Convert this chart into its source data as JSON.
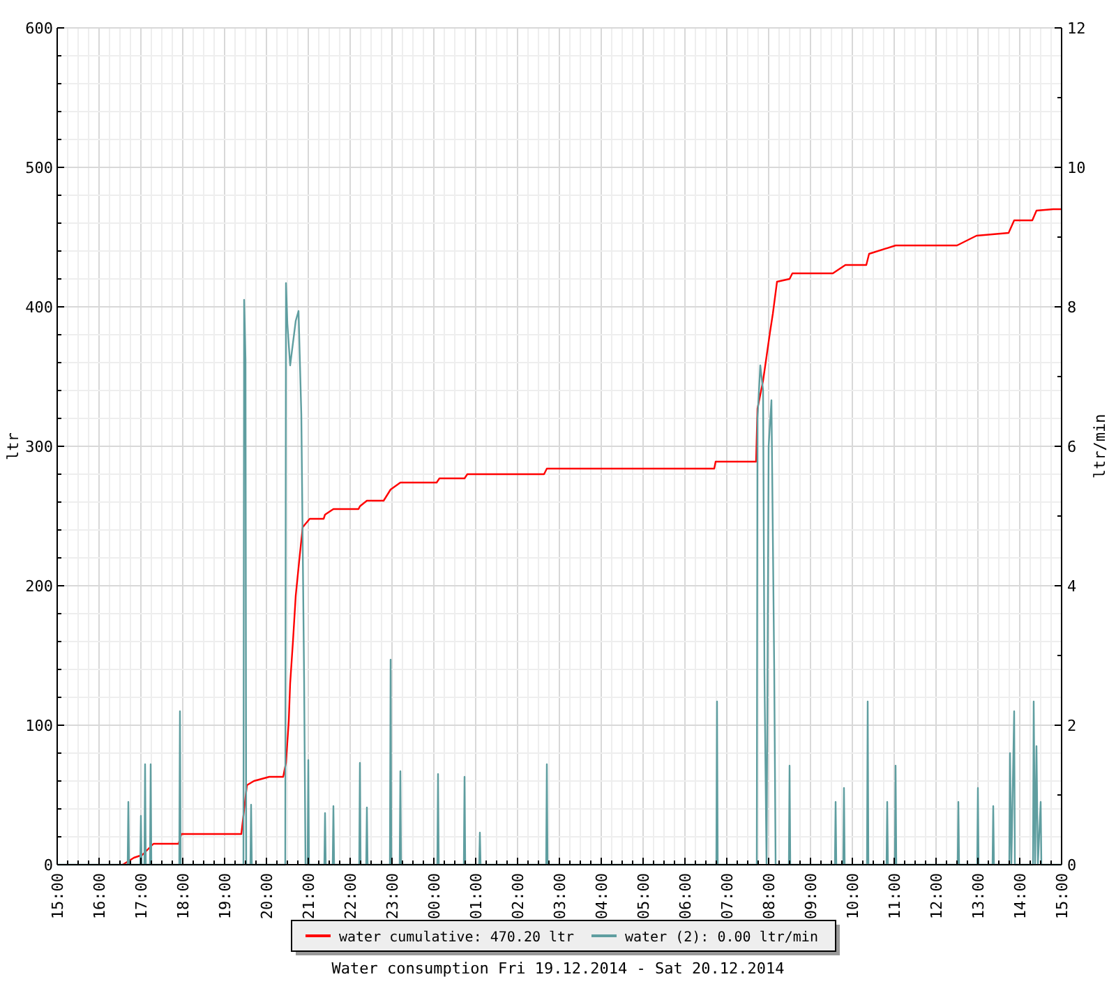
{
  "chart_data": {
    "type": "line",
    "title": "Water consumption Fri 19.12.2014 - Sat 20.12.2014",
    "ylabel": "ltr",
    "y2label": "ltr/min",
    "legend": "bottom",
    "grid": true,
    "marker": "none",
    "line_style": "solid",
    "xlim": [
      "2014-12-19T15:00",
      "2014-12-20T15:00"
    ],
    "xticks": [
      {
        "value": "2014-12-19T15:00",
        "label": "15:00"
      },
      {
        "value": "2014-12-19T15:15",
        "label": null
      },
      {
        "value": "2014-12-19T15:30",
        "label": null
      },
      {
        "value": "2014-12-19T15:45",
        "label": null
      },
      {
        "value": "2014-12-19T16:00",
        "label": "16:00"
      },
      {
        "value": "2014-12-19T16:15",
        "label": null
      },
      {
        "value": "2014-12-19T16:30",
        "label": null
      },
      {
        "value": "2014-12-19T16:45",
        "label": null
      },
      {
        "value": "2014-12-19T17:00",
        "label": "17:00"
      },
      {
        "value": "2014-12-19T17:15",
        "label": null
      },
      {
        "value": "2014-12-19T17:30",
        "label": null
      },
      {
        "value": "2014-12-19T17:45",
        "label": null
      },
      {
        "value": "2014-12-19T18:00",
        "label": "18:00"
      },
      {
        "value": "2014-12-19T18:15",
        "label": null
      },
      {
        "value": "2014-12-19T18:30",
        "label": null
      },
      {
        "value": "2014-12-19T18:45",
        "label": null
      },
      {
        "value": "2014-12-19T19:00",
        "label": "19:00"
      },
      {
        "value": "2014-12-19T19:15",
        "label": null
      },
      {
        "value": "2014-12-19T19:30",
        "label": null
      },
      {
        "value": "2014-12-19T19:45",
        "label": null
      },
      {
        "value": "2014-12-19T20:00",
        "label": "20:00"
      },
      {
        "value": "2014-12-19T20:15",
        "label": null
      },
      {
        "value": "2014-12-19T20:30",
        "label": null
      },
      {
        "value": "2014-12-19T20:45",
        "label": null
      },
      {
        "value": "2014-12-19T21:00",
        "label": "21:00"
      },
      {
        "value": "2014-12-19T21:15",
        "label": null
      },
      {
        "value": "2014-12-19T21:30",
        "label": null
      },
      {
        "value": "2014-12-19T21:45",
        "label": null
      },
      {
        "value": "2014-12-19T22:00",
        "label": "22:00"
      },
      {
        "value": "2014-12-19T22:15",
        "label": null
      },
      {
        "value": "2014-12-19T22:30",
        "label": null
      },
      {
        "value": "2014-12-19T22:45",
        "label": null
      },
      {
        "value": "2014-12-19T23:00",
        "label": "23:00"
      },
      {
        "value": "2014-12-19T23:15",
        "label": null
      },
      {
        "value": "2014-12-19T23:30",
        "label": null
      },
      {
        "value": "2014-12-19T23:45",
        "label": null
      },
      {
        "value": "2014-12-20T00:00",
        "label": "00:00"
      },
      {
        "value": "2014-12-20T00:15",
        "label": null
      },
      {
        "value": "2014-12-20T00:30",
        "label": null
      },
      {
        "value": "2014-12-20T00:45",
        "label": null
      },
      {
        "value": "2014-12-20T01:00",
        "label": "01:00"
      },
      {
        "value": "2014-12-20T01:15",
        "label": null
      },
      {
        "value": "2014-12-20T01:30",
        "label": null
      },
      {
        "value": "2014-12-20T01:45",
        "label": null
      },
      {
        "value": "2014-12-20T02:00",
        "label": "02:00"
      },
      {
        "value": "2014-12-20T02:15",
        "label": null
      },
      {
        "value": "2014-12-20T02:30",
        "label": null
      },
      {
        "value": "2014-12-20T02:45",
        "label": null
      },
      {
        "value": "2014-12-20T03:00",
        "label": "03:00"
      },
      {
        "value": "2014-12-20T03:15",
        "label": null
      },
      {
        "value": "2014-12-20T03:30",
        "label": null
      },
      {
        "value": "2014-12-20T03:45",
        "label": null
      },
      {
        "value": "2014-12-20T04:00",
        "label": "04:00"
      },
      {
        "value": "2014-12-20T04:15",
        "label": null
      },
      {
        "value": "2014-12-20T04:30",
        "label": null
      },
      {
        "value": "2014-12-20T04:45",
        "label": null
      },
      {
        "value": "2014-12-20T05:00",
        "label": "05:00"
      },
      {
        "value": "2014-12-20T05:15",
        "label": null
      },
      {
        "value": "2014-12-20T05:30",
        "label": null
      },
      {
        "value": "2014-12-20T05:45",
        "label": null
      },
      {
        "value": "2014-12-20T06:00",
        "label": "06:00"
      },
      {
        "value": "2014-12-20T06:15",
        "label": null
      },
      {
        "value": "2014-12-20T06:30",
        "label": null
      },
      {
        "value": "2014-12-20T06:45",
        "label": null
      },
      {
        "value": "2014-12-20T07:00",
        "label": "07:00"
      },
      {
        "value": "2014-12-20T07:15",
        "label": null
      },
      {
        "value": "2014-12-20T07:30",
        "label": null
      },
      {
        "value": "2014-12-20T07:45",
        "label": null
      },
      {
        "value": "2014-12-20T08:00",
        "label": "08:00"
      },
      {
        "value": "2014-12-20T08:15",
        "label": null
      },
      {
        "value": "2014-12-20T08:30",
        "label": null
      },
      {
        "value": "2014-12-20T08:45",
        "label": null
      },
      {
        "value": "2014-12-20T09:00",
        "label": "09:00"
      },
      {
        "value": "2014-12-20T09:15",
        "label": null
      },
      {
        "value": "2014-12-20T09:30",
        "label": null
      },
      {
        "value": "2014-12-20T09:45",
        "label": null
      },
      {
        "value": "2014-12-20T10:00",
        "label": "10:00"
      },
      {
        "value": "2014-12-20T10:15",
        "label": null
      },
      {
        "value": "2014-12-20T10:30",
        "label": null
      },
      {
        "value": "2014-12-20T10:45",
        "label": null
      },
      {
        "value": "2014-12-20T11:00",
        "label": "11:00"
      },
      {
        "value": "2014-12-20T11:15",
        "label": null
      },
      {
        "value": "2014-12-20T11:30",
        "label": null
      },
      {
        "value": "2014-12-20T11:45",
        "label": null
      },
      {
        "value": "2014-12-20T12:00",
        "label": "12:00"
      },
      {
        "value": "2014-12-20T12:15",
        "label": null
      },
      {
        "value": "2014-12-20T12:30",
        "label": null
      },
      {
        "value": "2014-12-20T12:45",
        "label": null
      },
      {
        "value": "2014-12-20T13:00",
        "label": "13:00"
      },
      {
        "value": "2014-12-20T13:15",
        "label": null
      },
      {
        "value": "2014-12-20T13:30",
        "label": null
      },
      {
        "value": "2014-12-20T13:45",
        "label": null
      },
      {
        "value": "2014-12-20T14:00",
        "label": "14:00"
      },
      {
        "value": "2014-12-20T14:15",
        "label": null
      },
      {
        "value": "2014-12-20T14:30",
        "label": null
      },
      {
        "value": "2014-12-20T14:45",
        "label": null
      },
      {
        "value": "2014-12-20T15:00",
        "label": "15:00"
      }
    ],
    "ylim": [
      0,
      600
    ],
    "yticks": [
      0,
      {
        "value": 20,
        "label": null
      },
      {
        "value": 40,
        "label": null
      },
      {
        "value": 60,
        "label": null
      },
      {
        "value": 80,
        "label": null
      },
      100,
      {
        "value": 120,
        "label": null
      },
      {
        "value": 140,
        "label": null
      },
      {
        "value": 160,
        "label": null
      },
      {
        "value": 180,
        "label": null
      },
      200,
      {
        "value": 220,
        "label": null
      },
      {
        "value": 240,
        "label": null
      },
      {
        "value": 260,
        "label": null
      },
      {
        "value": 280,
        "label": null
      },
      300,
      {
        "value": 320,
        "label": null
      },
      {
        "value": 340,
        "label": null
      },
      {
        "value": 360,
        "label": null
      },
      {
        "value": 380,
        "label": null
      },
      400,
      {
        "value": 420,
        "label": null
      },
      {
        "value": 440,
        "label": null
      },
      {
        "value": 460,
        "label": null
      },
      {
        "value": 480,
        "label": null
      },
      500,
      {
        "value": 520,
        "label": null
      },
      {
        "value": 540,
        "label": null
      },
      {
        "value": 560,
        "label": null
      },
      {
        "value": 580,
        "label": null
      },
      600
    ],
    "y2lim": [
      0,
      12
    ],
    "y2ticks": [
      0,
      {
        "value": 1,
        "label": null
      },
      2,
      {
        "value": 3,
        "label": null
      },
      4,
      {
        "value": 5,
        "label": null
      },
      6,
      {
        "value": 7,
        "label": null
      },
      8,
      {
        "value": 9,
        "label": null
      },
      10,
      {
        "value": 11,
        "label": null
      },
      12
    ],
    "series": [
      {
        "name": "water cumulative: 470.20 ltr",
        "color": "#ff0000",
        "x": [
          "2014-12-19T16:34",
          "2014-12-19T16:50",
          "2014-12-19T17:02",
          "2014-12-19T17:08",
          "2014-12-19T17:18",
          "2014-12-19T17:54",
          "2014-12-19T17:58",
          "2014-12-19T19:24",
          "2014-12-19T19:32",
          "2014-12-19T19:42",
          "2014-12-19T20:04",
          "2014-12-19T20:24",
          "2014-12-19T20:28",
          "2014-12-19T20:32",
          "2014-12-19T20:34",
          "2014-12-19T20:38",
          "2014-12-19T20:42",
          "2014-12-19T20:48",
          "2014-12-19T20:52",
          "2014-12-19T21:02",
          "2014-12-19T21:22",
          "2014-12-19T21:24",
          "2014-12-19T21:36",
          "2014-12-19T22:12",
          "2014-12-19T22:14",
          "2014-12-19T22:24",
          "2014-12-19T22:48",
          "2014-12-19T22:58",
          "2014-12-19T23:12",
          "2014-12-20T00:04",
          "2014-12-20T00:08",
          "2014-12-20T00:44",
          "2014-12-20T00:48",
          "2014-12-20T02:38",
          "2014-12-20T02:42",
          "2014-12-20T06:42",
          "2014-12-20T06:44",
          "2014-12-20T07:42",
          "2014-12-20T07:44",
          "2014-12-20T07:52",
          "2014-12-20T08:02",
          "2014-12-20T08:06",
          "2014-12-20T08:12",
          "2014-12-20T08:30",
          "2014-12-20T08:34",
          "2014-12-20T09:32",
          "2014-12-20T09:50",
          "2014-12-20T10:20",
          "2014-12-20T10:24",
          "2014-12-20T11:02",
          "2014-12-20T12:30",
          "2014-12-20T12:58",
          "2014-12-20T13:44",
          "2014-12-20T13:52",
          "2014-12-20T14:18",
          "2014-12-20T14:24",
          "2014-12-20T14:48",
          "2014-12-20T15:00"
        ],
        "values": [
          0,
          5,
          7,
          10,
          15,
          15,
          22,
          22,
          57,
          60,
          63,
          63,
          73,
          103,
          130,
          160,
          193,
          223,
          242,
          248,
          248,
          251,
          255,
          255,
          257,
          261,
          261,
          269,
          274,
          274,
          277,
          277,
          280,
          280,
          284,
          284,
          289,
          289,
          327,
          347,
          382,
          395,
          418,
          420,
          424,
          424,
          430,
          430,
          438,
          444,
          444,
          451,
          453,
          462,
          462,
          469,
          470,
          470
        ]
      },
      {
        "name": "water (2): 0.00 ltr/min",
        "color": "#5f9ea0",
        "axis": "y2",
        "x": [
          "2014-12-19T15:00",
          "2014-12-19T16:41",
          "2014-12-19T16:42",
          "2014-12-19T16:43",
          "2014-12-19T16:59",
          "2014-12-19T17:00",
          "2014-12-19T17:01",
          "2014-12-19T17:05",
          "2014-12-19T17:06",
          "2014-12-19T17:07",
          "2014-12-19T17:13",
          "2014-12-19T17:14",
          "2014-12-19T17:15",
          "2014-12-19T17:55",
          "2014-12-19T17:56",
          "2014-12-19T17:57",
          "2014-12-19T19:27",
          "2014-12-19T19:28",
          "2014-12-19T19:30",
          "2014-12-19T19:31",
          "2014-12-19T19:37",
          "2014-12-19T19:38",
          "2014-12-19T19:39",
          "2014-12-19T20:27",
          "2014-12-19T20:28",
          "2014-12-19T20:30",
          "2014-12-19T20:34",
          "2014-12-19T20:42",
          "2014-12-19T20:46",
          "2014-12-19T20:50",
          "2014-12-19T20:54",
          "2014-12-19T20:56",
          "2014-12-19T20:59",
          "2014-12-19T21:00",
          "2014-12-19T21:01",
          "2014-12-19T21:23",
          "2014-12-19T21:24",
          "2014-12-19T21:25",
          "2014-12-19T21:35",
          "2014-12-19T21:36",
          "2014-12-19T21:37",
          "2014-12-19T22:13",
          "2014-12-19T22:14",
          "2014-12-19T22:15",
          "2014-12-19T22:23",
          "2014-12-19T22:24",
          "2014-12-19T22:25",
          "2014-12-19T22:57",
          "2014-12-19T22:58",
          "2014-12-19T22:59",
          "2014-12-19T23:11",
          "2014-12-19T23:12",
          "2014-12-19T23:13",
          "2014-12-20T00:05",
          "2014-12-20T00:06",
          "2014-12-20T00:07",
          "2014-12-20T00:43",
          "2014-12-20T00:44",
          "2014-12-20T00:45",
          "2014-12-20T01:05",
          "2014-12-20T01:06",
          "2014-12-20T01:07",
          "2014-12-20T02:41",
          "2014-12-20T02:42",
          "2014-12-20T02:43",
          "2014-12-20T06:45",
          "2014-12-20T06:46",
          "2014-12-20T06:47",
          "2014-12-20T07:43",
          "2014-12-20T07:44",
          "2014-12-20T07:48",
          "2014-12-20T07:52",
          "2014-12-20T07:54",
          "2014-12-20T07:57",
          "2014-12-20T08:00",
          "2014-12-20T08:04",
          "2014-12-20T08:08",
          "2014-12-20T08:10",
          "2014-12-20T08:29",
          "2014-12-20T08:30",
          "2014-12-20T08:31",
          "2014-12-20T09:35",
          "2014-12-20T09:36",
          "2014-12-20T09:37",
          "2014-12-20T09:47",
          "2014-12-20T09:48",
          "2014-12-20T09:49",
          "2014-12-20T10:21",
          "2014-12-20T10:22",
          "2014-12-20T10:23",
          "2014-12-20T10:49",
          "2014-12-20T10:50",
          "2014-12-20T10:51",
          "2014-12-20T11:01",
          "2014-12-20T11:02",
          "2014-12-20T11:03",
          "2014-12-20T12:31",
          "2014-12-20T12:32",
          "2014-12-20T12:33",
          "2014-12-20T12:59",
          "2014-12-20T13:00",
          "2014-12-20T13:01",
          "2014-12-20T13:21",
          "2014-12-20T13:22",
          "2014-12-20T13:23",
          "2014-12-20T13:45",
          "2014-12-20T13:46",
          "2014-12-20T13:48",
          "2014-12-20T13:52",
          "2014-12-20T13:53",
          "2014-12-20T14:19",
          "2014-12-20T14:20",
          "2014-12-20T14:22",
          "2014-12-20T14:24",
          "2014-12-20T14:26",
          "2014-12-20T14:30",
          "2014-12-20T14:31",
          "2014-12-20T15:00"
        ],
        "values": [
          0,
          0,
          0.9,
          0,
          0,
          0.7,
          0,
          0,
          1.44,
          0,
          0,
          1.44,
          0,
          0,
          2.2,
          0,
          0,
          8.1,
          7.24,
          0,
          0,
          0.86,
          0,
          0,
          8.34,
          7.76,
          7.16,
          7.8,
          7.94,
          6.46,
          2.66,
          0,
          0,
          1.5,
          0,
          0,
          0.74,
          0,
          0,
          0.84,
          0,
          0,
          1.46,
          0,
          0,
          0.82,
          0,
          0,
          2.94,
          0,
          0,
          1.34,
          0,
          0,
          1.3,
          0,
          0,
          1.26,
          0,
          0,
          0.46,
          0,
          0,
          1.44,
          0,
          0,
          2.34,
          0,
          0,
          6.4,
          7.16,
          6.8,
          2.74,
          0,
          6.0,
          6.66,
          2.8,
          0,
          0,
          1.42,
          0,
          0,
          0.9,
          0,
          0,
          1.1,
          0,
          0,
          2.34,
          0,
          0,
          0.9,
          0,
          0,
          1.42,
          0,
          0,
          0.9,
          0,
          0,
          1.1,
          0,
          0,
          0.84,
          0,
          0,
          1.6,
          0,
          2.2,
          0,
          0,
          2.34,
          0,
          1.7,
          0,
          0.9,
          0,
          0
        ]
      }
    ]
  }
}
